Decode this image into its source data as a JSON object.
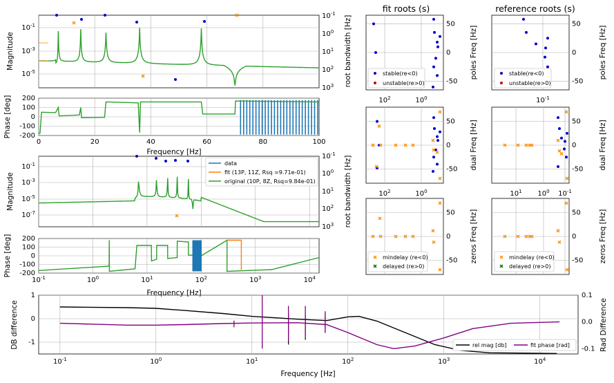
{
  "titles": {
    "fit_roots": "fit roots (s)",
    "reference_roots": "reference roots (s)"
  },
  "axis_labels": {
    "magnitude": "Magnitude",
    "phase": "Phase [deg]",
    "frequency": "Frequency [Hz]",
    "root_bandwidth": "root bandwidth [Hz]",
    "poles_freq": "poles Freq [Hz]",
    "dual_freq": "dual Freq [Hz]",
    "zeros_freq": "zeros Freq [Hz]",
    "db_difference": "DB difference",
    "rad_difference": "Rad Difference"
  },
  "legends": {
    "fit": [
      "data",
      "fit (13P, 11Z, Rsq =9.71e-01)",
      "original (10P, 8Z, Rsq=9.84e-01)"
    ],
    "poles": [
      "stable(re<0)",
      "unstable(re>0)"
    ],
    "zeros": [
      "mindelay (re<0)",
      "delayed (re>0)"
    ],
    "diff": [
      "rel mag [db]",
      "fit phase [rad]"
    ]
  },
  "colors": {
    "data": "#1f77b4",
    "fit": "#ff7f0e",
    "original": "#2ca02c",
    "stable": "#0000cc",
    "unstable": "#cc0000",
    "zero": "#ff8c00",
    "delayed": "#006400",
    "relmag": "#000000",
    "phasediff": "#800080"
  },
  "ticks": {
    "mag_y": [
      "10^-1",
      "10^-3",
      "10^-5"
    ],
    "mag_y2_lin": [
      "10^-1",
      "10^0",
      "10^1",
      "10^2",
      "10^3"
    ],
    "mag2_y": [
      "10^-1",
      "10^-3",
      "10^-5",
      "10^-7"
    ],
    "phase_y": [
      "200",
      "100",
      "0",
      "-100",
      "-200"
    ],
    "lin_x": [
      "0",
      "20",
      "40",
      "60",
      "80",
      "100"
    ],
    "log_x": [
      "10^-1",
      "10^0",
      "10^1",
      "10^2",
      "10^3",
      "10^4"
    ],
    "roots_y": [
      "50",
      "0",
      "-50"
    ],
    "dual_y": [
      "50",
      "0",
      "-50"
    ],
    "zeros_y": [
      "50",
      "0",
      "-50"
    ],
    "fit_roots_x": [
      "10^2",
      "10^0"
    ],
    "ref_roots_x": [
      "10^-1"
    ],
    "ref_dual_x": [
      "10^1",
      "10^0",
      "10^-1"
    ],
    "diff_y": [
      "1",
      "0",
      "-1"
    ],
    "diff_y2": [
      "0.1",
      "0.0",
      "-0.1"
    ],
    "diff_x": [
      "10^-1",
      "10^0",
      "10^1",
      "10^2",
      "10^3",
      "10^4"
    ]
  },
  "chart_data": [
    {
      "type": "line",
      "title": "",
      "xlabel": "Frequency [Hz]",
      "ylabel": "Magnitude",
      "y2label": "root bandwidth [Hz]",
      "xscale": "linear",
      "yscale": "log",
      "xlim": [
        0,
        100
      ],
      "ylim": [
        1e-07,
        1
      ],
      "resonances_hz": [
        7,
        15,
        24,
        36,
        58
      ],
      "notch_hz": [
        70
      ],
      "series": [
        {
          "name": "data",
          "values_hint": "resonant magnitude response"
        },
        {
          "name": "fit"
        },
        {
          "name": "original"
        }
      ]
    },
    {
      "type": "line",
      "title": "",
      "xlabel": "Frequency [Hz]",
      "ylabel": "Phase [deg]",
      "xscale": "linear",
      "xlim": [
        0,
        100
      ],
      "ylim": [
        -200,
        200
      ],
      "grid": true
    },
    {
      "type": "line",
      "title": "",
      "xlabel": "Frequency [Hz]",
      "ylabel": "Magnitude",
      "y2label": "root bandwidth [Hz]",
      "xscale": "log",
      "yscale": "log",
      "xlim": [
        0.1,
        15000
      ],
      "ylim": [
        1e-08,
        1
      ],
      "legend": "top-right"
    },
    {
      "type": "line",
      "title": "",
      "xlabel": "Frequency [Hz]",
      "ylabel": "Phase [deg]",
      "xscale": "log",
      "xlim": [
        0.1,
        15000
      ],
      "ylim": [
        -200,
        200
      ]
    },
    {
      "type": "scatter",
      "title": "fit roots (s)",
      "ylabel": "poles Freq [Hz]",
      "ylim": [
        -60,
        60
      ],
      "legend": "bottom-left"
    },
    {
      "type": "scatter",
      "title": "reference roots (s)",
      "ylabel": "poles Freq [Hz]",
      "ylim": [
        -60,
        60
      ],
      "legend": "bottom-left"
    },
    {
      "type": "scatter",
      "ylabel": "dual Freq [Hz]",
      "ylim": [
        -75,
        75
      ]
    },
    {
      "type": "scatter",
      "ylabel": "dual Freq [Hz]",
      "ylim": [
        -75,
        75
      ]
    },
    {
      "type": "scatter",
      "ylabel": "zeros Freq [Hz]",
      "ylim": [
        -75,
        75
      ],
      "legend": "bottom-left"
    },
    {
      "type": "scatter",
      "ylabel": "zeros Freq [Hz]",
      "ylim": [
        -75,
        75
      ],
      "legend": "bottom-left"
    },
    {
      "type": "line",
      "title": "",
      "xlabel": "Frequency [Hz]",
      "ylabel": "DB difference",
      "y2label": "Rad Difference",
      "xscale": "log",
      "xlim": [
        0.06,
        25000
      ],
      "ylim": [
        -1.5,
        1
      ],
      "y2lim": [
        -0.12,
        0.1
      ],
      "legend": "bottom-right",
      "series": [
        {
          "name": "rel mag [db]",
          "x": [
            0.1,
            0.5,
            1,
            2,
            5,
            10,
            30,
            60,
            100,
            130,
            200,
            400,
            800,
            1500,
            3000,
            15000
          ],
          "values": [
            0.5,
            0.47,
            0.44,
            0.35,
            0.22,
            0.1,
            -0.02,
            -0.08,
            0.08,
            0.1,
            -0.1,
            -0.6,
            -1.1,
            -1.35,
            -1.45,
            -1.48
          ]
        },
        {
          "name": "fit phase [rad]",
          "x": [
            0.1,
            0.5,
            1,
            2,
            5,
            10,
            30,
            60,
            100,
            200,
            300,
            500,
            1000,
            2000,
            5000,
            16000
          ],
          "values": [
            -0.005,
            -0.012,
            -0.012,
            -0.01,
            -0.006,
            -0.004,
            -0.003,
            -0.01,
            -0.04,
            -0.085,
            -0.1,
            -0.09,
            -0.06,
            -0.025,
            -0.005,
            0.0
          ]
        }
      ]
    }
  ]
}
